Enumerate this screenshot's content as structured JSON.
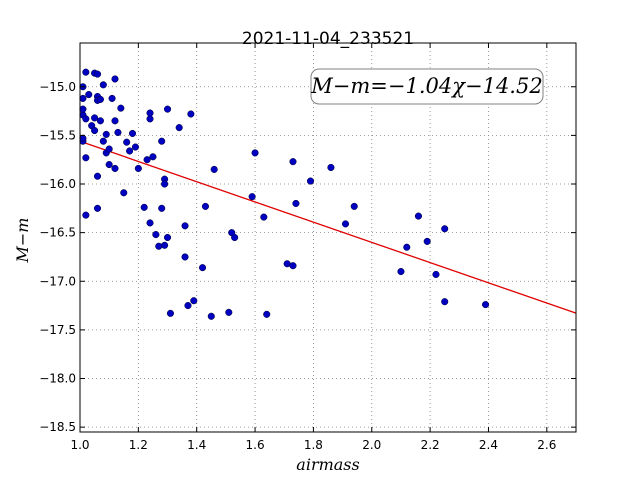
{
  "chart_data": {
    "type": "scatter",
    "title": "2021-11-04_233521",
    "xlabel": "airmass",
    "ylabel": "M−m",
    "xlim": [
      1.0,
      2.7
    ],
    "ylim": [
      -18.55,
      -14.55
    ],
    "y_inverted": true,
    "grid": true,
    "xticks": [
      1.0,
      1.2,
      1.4,
      1.6,
      1.8,
      2.0,
      2.2,
      2.4,
      2.6
    ],
    "xtick_labels": [
      "1.0",
      "1.2",
      "1.4",
      "1.6",
      "1.8",
      "2.0",
      "2.2",
      "2.4",
      "2.6"
    ],
    "yticks": [
      -15.0,
      -15.5,
      -16.0,
      -16.5,
      -17.0,
      -17.5,
      -18.0,
      -18.5
    ],
    "ytick_labels": [
      "−15.0",
      "−15.5",
      "−16.0",
      "−16.5",
      "−17.0",
      "−17.5",
      "−18.0",
      "−18.5"
    ],
    "annotation": "M−m=−1.04χ−14.52",
    "fit": {
      "slope": -1.04,
      "intercept": -14.52,
      "color": "#e00000"
    },
    "point_color": "#0000c0",
    "points": [
      [
        1.01,
        -15.56
      ],
      [
        1.01,
        -15.53
      ],
      [
        1.01,
        -15.12
      ],
      [
        1.01,
        -15.0
      ],
      [
        1.02,
        -14.85
      ],
      [
        1.01,
        -15.29
      ],
      [
        1.02,
        -15.33
      ],
      [
        1.01,
        -15.23
      ],
      [
        1.02,
        -15.73
      ],
      [
        1.02,
        -16.32
      ],
      [
        1.03,
        -15.08
      ],
      [
        1.04,
        -15.4
      ],
      [
        1.05,
        -14.86
      ],
      [
        1.05,
        -15.32
      ],
      [
        1.05,
        -15.45
      ],
      [
        1.06,
        -15.1
      ],
      [
        1.06,
        -15.14
      ],
      [
        1.06,
        -14.87
      ],
      [
        1.07,
        -15.13
      ],
      [
        1.07,
        -15.35
      ],
      [
        1.06,
        -15.92
      ],
      [
        1.06,
        -16.25
      ],
      [
        1.08,
        -14.98
      ],
      [
        1.08,
        -15.56
      ],
      [
        1.09,
        -15.49
      ],
      [
        1.09,
        -15.68
      ],
      [
        1.1,
        -15.64
      ],
      [
        1.1,
        -15.8
      ],
      [
        1.11,
        -15.12
      ],
      [
        1.12,
        -14.92
      ],
      [
        1.12,
        -15.35
      ],
      [
        1.12,
        -15.84
      ],
      [
        1.13,
        -15.47
      ],
      [
        1.14,
        -15.22
      ],
      [
        1.15,
        -16.09
      ],
      [
        1.16,
        -15.57
      ],
      [
        1.17,
        -15.66
      ],
      [
        1.18,
        -15.48
      ],
      [
        1.19,
        -15.62
      ],
      [
        1.2,
        -15.84
      ],
      [
        1.22,
        -16.24
      ],
      [
        1.23,
        -15.75
      ],
      [
        1.24,
        -15.33
      ],
      [
        1.24,
        -15.27
      ],
      [
        1.24,
        -16.4
      ],
      [
        1.25,
        -15.72
      ],
      [
        1.26,
        -16.52
      ],
      [
        1.27,
        -16.64
      ],
      [
        1.28,
        -15.56
      ],
      [
        1.28,
        -16.25
      ],
      [
        1.29,
        -15.95
      ],
      [
        1.29,
        -16.0
      ],
      [
        1.29,
        -16.63
      ],
      [
        1.3,
        -15.23
      ],
      [
        1.3,
        -16.55
      ],
      [
        1.31,
        -17.33
      ],
      [
        1.34,
        -15.42
      ],
      [
        1.36,
        -16.43
      ],
      [
        1.36,
        -16.75
      ],
      [
        1.37,
        -17.25
      ],
      [
        1.38,
        -15.28
      ],
      [
        1.39,
        -17.2
      ],
      [
        1.42,
        -16.86
      ],
      [
        1.43,
        -16.23
      ],
      [
        1.45,
        -17.36
      ],
      [
        1.46,
        -15.85
      ],
      [
        1.51,
        -17.32
      ],
      [
        1.52,
        -16.5
      ],
      [
        1.53,
        -16.55
      ],
      [
        1.59,
        -16.13
      ],
      [
        1.6,
        -15.68
      ],
      [
        1.63,
        -16.34
      ],
      [
        1.64,
        -17.34
      ],
      [
        1.71,
        -16.82
      ],
      [
        1.73,
        -16.84
      ],
      [
        1.73,
        -15.77
      ],
      [
        1.74,
        -16.2
      ],
      [
        1.79,
        -15.97
      ],
      [
        1.86,
        -15.83
      ],
      [
        1.91,
        -16.41
      ],
      [
        1.94,
        -16.23
      ],
      [
        2.1,
        -16.9
      ],
      [
        2.12,
        -16.65
      ],
      [
        2.16,
        -16.33
      ],
      [
        2.19,
        -16.59
      ],
      [
        2.22,
        -16.93
      ],
      [
        2.25,
        -16.46
      ],
      [
        2.25,
        -17.21
      ],
      [
        2.39,
        -17.24
      ]
    ]
  }
}
